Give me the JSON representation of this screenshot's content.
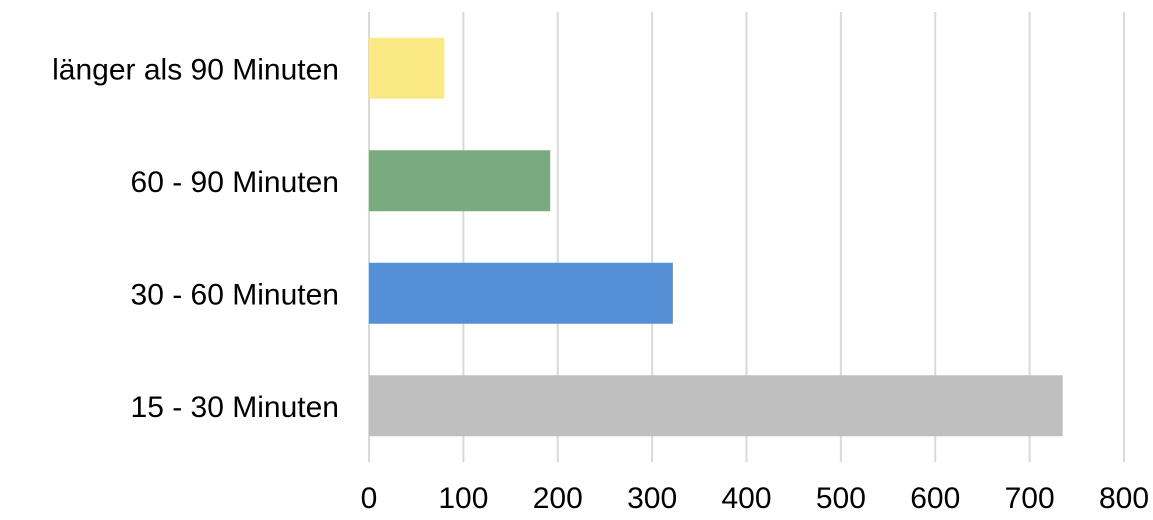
{
  "chart_data": {
    "type": "bar",
    "orientation": "horizontal",
    "categories": [
      "länger als 90 Minuten",
      "60 - 90 Minuten",
      "30 - 60 Minuten",
      "15 - 30 Minuten"
    ],
    "values": [
      80,
      192,
      322,
      735
    ],
    "colors": [
      "#fbe986",
      "#7aab7f",
      "#5590d6",
      "#bfbfbf"
    ],
    "x_ticks": [
      "0",
      "100",
      "200",
      "300",
      "400",
      "500",
      "600",
      "700",
      "800"
    ],
    "xlim": [
      0,
      800
    ],
    "grid": true,
    "grid_color": "#d9d9d9",
    "title": "",
    "xlabel": "",
    "ylabel": ""
  }
}
